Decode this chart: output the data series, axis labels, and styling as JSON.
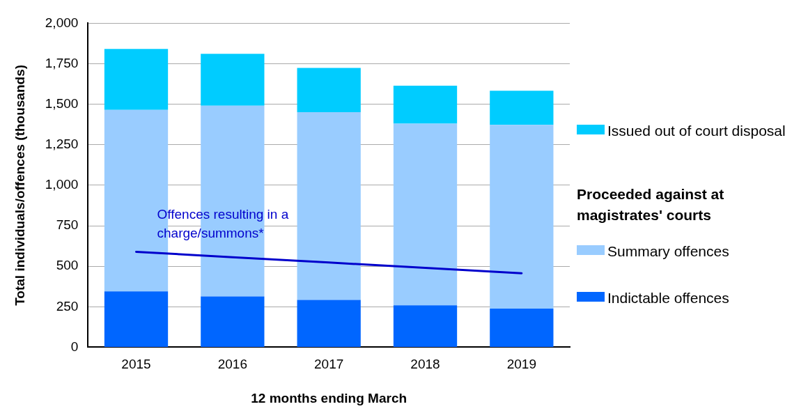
{
  "chart_data": {
    "type": "bar",
    "stacked": true,
    "xlabel": "12 months ending March",
    "ylabel": "Total individuals/offences (thousands)",
    "legend_title": "Proceeded against at magistrates' courts",
    "legend": "right",
    "grid": "y",
    "categories": [
      "2015",
      "2016",
      "2017",
      "2018",
      "2019"
    ],
    "ylim": [
      0,
      2000
    ],
    "yticks": [
      0,
      {
        "value": 250,
        "label": "250"
      },
      {
        "value": 500,
        "label": "500"
      },
      {
        "value": 750,
        "label": "750"
      },
      {
        "value": 1000,
        "label": "1,000"
      },
      {
        "value": 1250,
        "label": "1,250"
      },
      {
        "value": 1500,
        "label": "1,500"
      },
      {
        "value": 1750,
        "label": "1,750"
      },
      {
        "value": 2000,
        "label": "2,000"
      }
    ],
    "series": [
      {
        "name": "Indictable offences",
        "color": "#0066ff",
        "values": [
          345,
          314,
          292,
          259,
          238
        ]
      },
      {
        "name": "Summary offences",
        "color": "#99ccff",
        "values": [
          1120,
          1177,
          1159,
          1121,
          1135
        ]
      },
      {
        "name": "Issued out of court disposal",
        "color": "#00ccff",
        "values": [
          377,
          320,
          273,
          235,
          210
        ]
      },
      {
        "name": "Offences resulting in a charge/summons*",
        "type": "line",
        "color": "#0000cc",
        "marker": "none",
        "values": [
          589,
          556,
          523,
          490,
          457
        ]
      }
    ]
  }
}
